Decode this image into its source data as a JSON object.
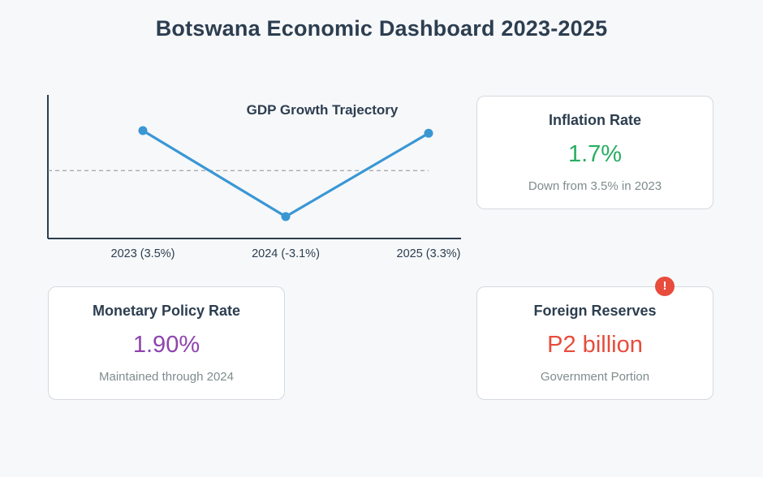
{
  "page": {
    "title": "Botswana Economic Dashboard 2023-2025"
  },
  "colors": {
    "line": "#3a97d4",
    "axis": "#2c3e50",
    "reference_line": "#8a8f94",
    "inflation_value": "#27ae60",
    "policy_value": "#8e44ad",
    "reserves_value": "#e74c3c",
    "alert": "#e74c3c"
  },
  "chart_data": {
    "type": "line",
    "title": "GDP Growth Trajectory",
    "categories": [
      "2023 (3.5%)",
      "2024 (-3.1%)",
      "2025 (3.3%)"
    ],
    "series": [
      {
        "values": [
          3.5,
          -3.1,
          3.3
        ]
      }
    ],
    "reference_line": 0,
    "ylim": [
      -5.5,
      7
    ],
    "xlabel": "",
    "ylabel": "",
    "grid": false,
    "legend": "none"
  },
  "cards": {
    "inflation": {
      "title": "Inflation Rate",
      "value": "1.7%",
      "subtitle": "Down from 3.5% in 2023"
    },
    "policy_rate": {
      "title": "Monetary Policy Rate",
      "value": "1.90%",
      "subtitle": "Maintained through 2024"
    },
    "reserves": {
      "title": "Foreign Reserves",
      "value": "P2 billion",
      "subtitle": "Government Portion",
      "alert_symbol": "!",
      "alert_icon": "alert-icon"
    }
  }
}
